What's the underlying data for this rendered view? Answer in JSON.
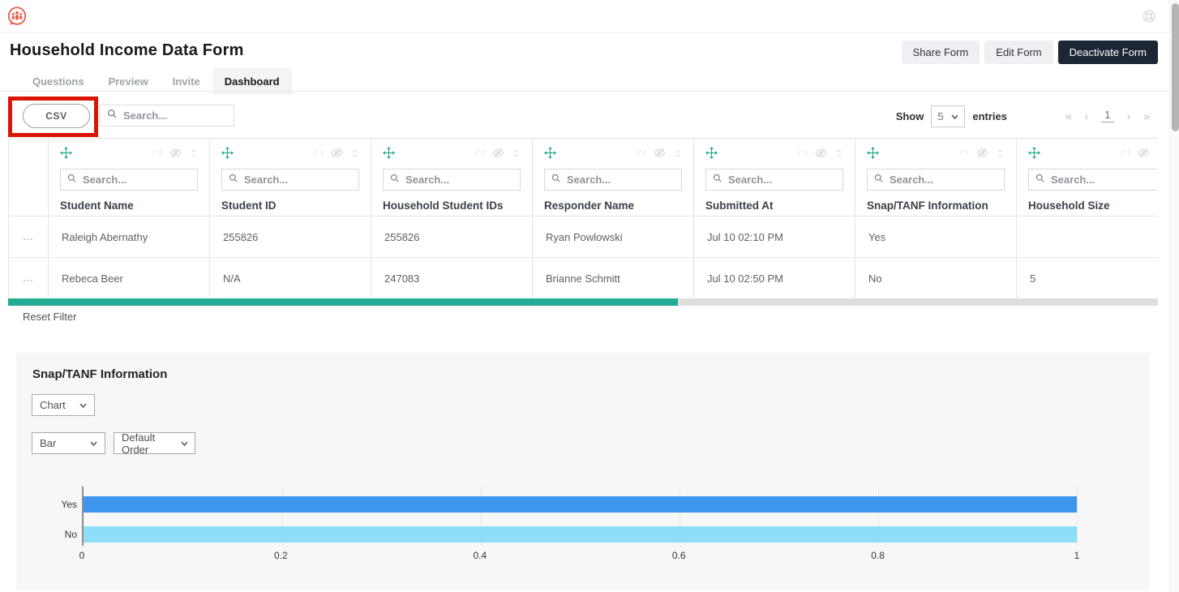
{
  "topbar": {
    "brand_icon": "people-chat-bubble-icon",
    "help_icon": "lifebuoy-help-icon"
  },
  "header": {
    "title": "Household Income Data Form",
    "buttons": {
      "share": "Share Form",
      "edit": "Edit Form",
      "deactivate": "Deactivate Form"
    }
  },
  "tabs": [
    {
      "label": "Questions",
      "active": false
    },
    {
      "label": "Preview",
      "active": false
    },
    {
      "label": "Invite",
      "active": false
    },
    {
      "label": "Dashboard",
      "active": true
    }
  ],
  "toolbar": {
    "csv_label": "CSV",
    "search_placeholder": "Search...",
    "show_label": "Show",
    "entries_per_page": "5",
    "entries_label": "entries",
    "pagination": {
      "first": "«",
      "prev": "‹",
      "page": "1",
      "next": "›",
      "last": "»"
    }
  },
  "table": {
    "column_search_placeholder": "Search...",
    "columns": [
      "Student Name",
      "Student ID",
      "Household Student IDs",
      "Responder Name",
      "Submitted At",
      "Snap/TANF Information",
      "Household Size"
    ],
    "rows": [
      {
        "cells": [
          "Raleigh Abernathy",
          "255826",
          "255826",
          "Ryan Powlowski",
          "Jul 10 02:10 PM",
          "Yes",
          ""
        ]
      },
      {
        "cells": [
          "Rebeca Beer",
          "N/A",
          "247083",
          "Brianne Schmitt",
          "Jul 10 02:50 PM",
          "No",
          "5"
        ]
      }
    ],
    "row_menu_glyph": "...",
    "reset_filter_label": "Reset Filter",
    "header_icons": [
      "drag-move-icon",
      "sort-alert-icon",
      "hide-column-icon",
      "sort-toggle-icon"
    ]
  },
  "chart_panel": {
    "title": "Snap/TANF Information",
    "view_select": "Chart",
    "type_select": "Bar",
    "order_select": "Default Order"
  },
  "chart_data": {
    "type": "bar",
    "orientation": "horizontal",
    "title": "Snap/TANF Information",
    "categories": [
      "Yes",
      "No"
    ],
    "values": [
      1,
      1
    ],
    "xlim": [
      0,
      1
    ],
    "x_ticks": [
      "0",
      "0.2",
      "0.4",
      "0.6",
      "0.8",
      "1"
    ],
    "bar_colors": [
      "#3e96ee",
      "#8edefa"
    ],
    "grid": true,
    "legend": false
  },
  "colors": {
    "brand_coral": "#e85d4a",
    "accent_teal": "#23ab93",
    "annotation_red": "#da1504",
    "dark_button": "#1d2734",
    "bar_yes": "#3e96ee",
    "bar_no": "#8edefa"
  }
}
